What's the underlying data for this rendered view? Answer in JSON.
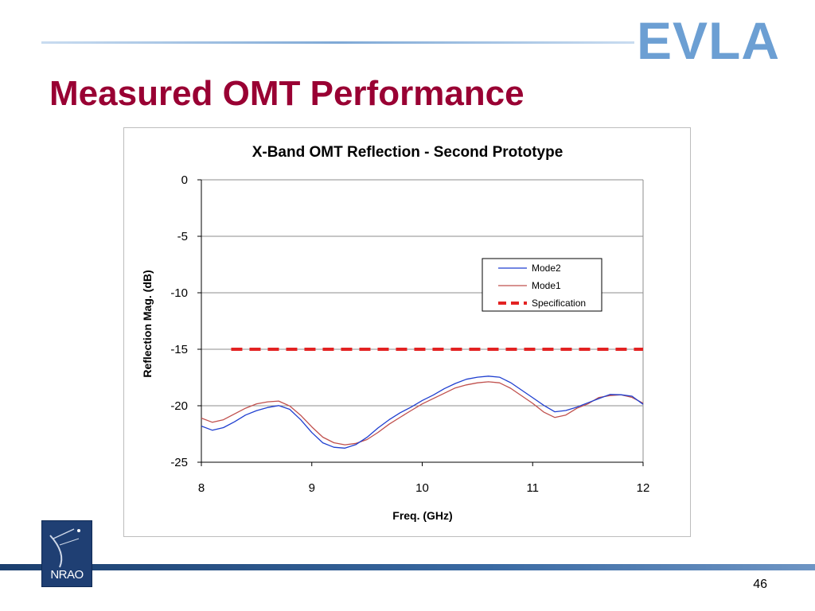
{
  "slide": {
    "title": "Measured OMT Performance",
    "logo_text": "EVLA",
    "footer_logo_text": "NRAO",
    "page_number": "46"
  },
  "colors": {
    "title": "#990033",
    "mode2": "#1f3fd0",
    "mode1": "#c0504d",
    "specification": "#e32222"
  },
  "chart_data": {
    "type": "line",
    "title": "X-Band OMT Reflection - Second Prototype",
    "xlabel": "Freq. (GHz)",
    "ylabel": "Reflection Mag. (dB)",
    "xlim": [
      8,
      12
    ],
    "ylim": [
      -25,
      0
    ],
    "xticks": [
      "8",
      "9",
      "10",
      "11",
      "12"
    ],
    "yticks": [
      "0",
      "-5",
      "-10",
      "-15",
      "-20",
      "-25"
    ],
    "grid": true,
    "legend_position": "right",
    "series": [
      {
        "name": "Mode2",
        "x": [
          8.0,
          8.1,
          8.2,
          8.3,
          8.4,
          8.5,
          8.6,
          8.7,
          8.8,
          8.9,
          9.0,
          9.1,
          9.2,
          9.3,
          9.4,
          9.5,
          9.6,
          9.7,
          9.8,
          9.9,
          10.0,
          10.1,
          10.2,
          10.3,
          10.4,
          10.5,
          10.6,
          10.7,
          10.8,
          10.9,
          11.0,
          11.1,
          11.2,
          11.3,
          11.4,
          11.5,
          11.6,
          11.7,
          11.8,
          11.9,
          12.0
        ],
        "y": [
          -21.8,
          -22.2,
          -22.0,
          -21.5,
          -20.9,
          -20.5,
          -20.2,
          -20.0,
          -20.3,
          -21.2,
          -22.3,
          -23.2,
          -23.6,
          -23.7,
          -23.4,
          -22.8,
          -22.0,
          -21.3,
          -20.7,
          -20.2,
          -19.6,
          -19.1,
          -18.5,
          -18.0,
          -17.6,
          -17.4,
          -17.3,
          -17.4,
          -17.9,
          -18.6,
          -19.3,
          -20.0,
          -20.6,
          -20.5,
          -20.2,
          -19.8,
          -19.4,
          -19.0,
          -19.0,
          -19.1,
          -19.8
        ]
      },
      {
        "name": "Mode1",
        "x": [
          8.0,
          8.1,
          8.2,
          8.3,
          8.4,
          8.5,
          8.6,
          8.7,
          8.8,
          8.9,
          9.0,
          9.1,
          9.2,
          9.3,
          9.4,
          9.5,
          9.6,
          9.7,
          9.8,
          9.9,
          10.0,
          10.1,
          10.2,
          10.3,
          10.4,
          10.5,
          10.6,
          10.7,
          10.8,
          10.9,
          11.0,
          11.1,
          11.2,
          11.3,
          11.4,
          11.5,
          11.6,
          11.7,
          11.8,
          11.9,
          12.0
        ],
        "y": [
          -21.1,
          -21.5,
          -21.3,
          -20.8,
          -20.3,
          -19.9,
          -19.7,
          -19.6,
          -20.0,
          -20.8,
          -21.8,
          -22.7,
          -23.2,
          -23.4,
          -23.3,
          -23.0,
          -22.4,
          -21.7,
          -21.1,
          -20.5,
          -19.9,
          -19.4,
          -18.9,
          -18.4,
          -18.1,
          -17.9,
          -17.8,
          -17.9,
          -18.4,
          -19.1,
          -19.8,
          -20.6,
          -21.1,
          -20.9,
          -20.3,
          -19.9,
          -19.3,
          -19.1,
          -19.0,
          -19.2,
          -19.7
        ]
      },
      {
        "name": "Specification",
        "x": [
          8.0,
          12.0
        ],
        "y": [
          -15,
          -15
        ]
      }
    ]
  }
}
